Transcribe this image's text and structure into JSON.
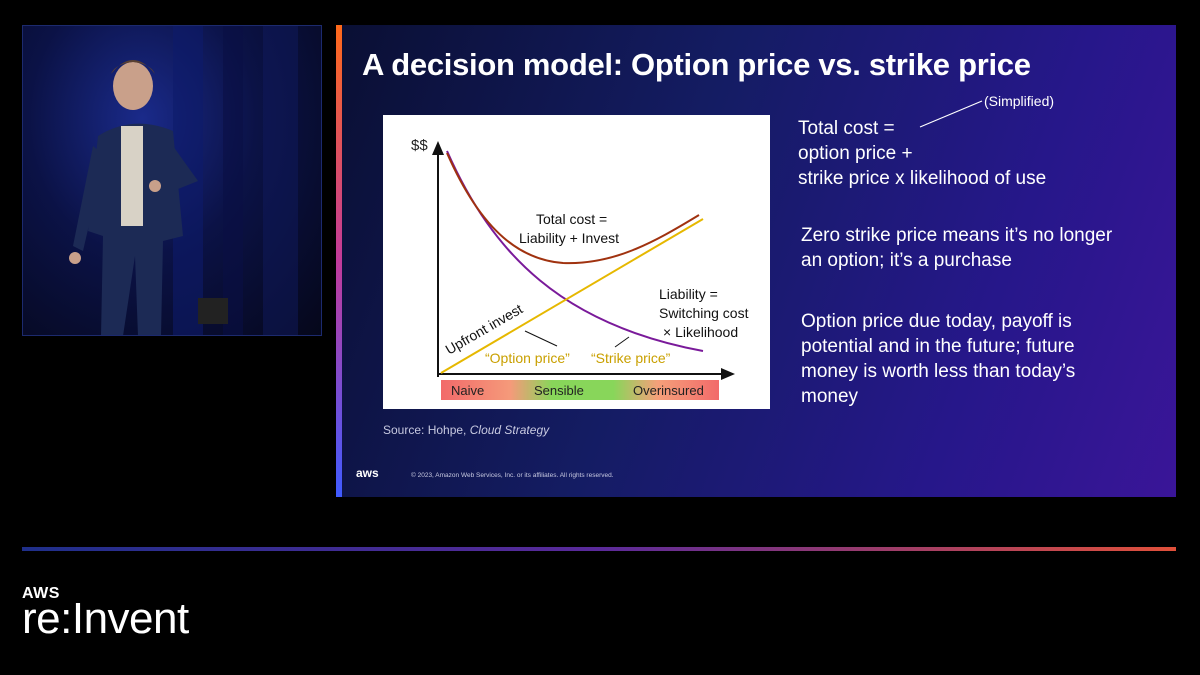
{
  "slide": {
    "title": "A decision model: Option price vs. strike price",
    "annotation": "(Simplified)",
    "total_cost_lines": [
      "Total cost =",
      "option price +",
      "strike price x likelihood of use"
    ],
    "point2_lines": [
      "Zero strike price means it’s no longer",
      "an option; it’s a purchase"
    ],
    "point3_lines": [
      "Option price due today, payoff is",
      "potential and in the future; future",
      "money is worth less than today’s",
      "money"
    ],
    "source_prefix": "Source: Hohpe,",
    "source_title": "Cloud Strategy",
    "footer_logo": "aws",
    "copyright": "© 2023, Amazon Web Services, Inc. or its affiliates. All rights reserved."
  },
  "chart": {
    "y_axis_label": "$$",
    "total_cost_label": [
      "Total cost =",
      "Liability + Invest"
    ],
    "upfront_label": "Upfront invest",
    "liability_label": [
      "Liability =",
      "Switching cost",
      "× Likelihood"
    ],
    "option_price_label": "“Option price”",
    "strike_price_label": "“Strike price”",
    "zones": [
      "Naive",
      "Sensible",
      "Overinsured"
    ],
    "colors": {
      "total": "#a0320f",
      "upfront": "#e6b800",
      "liability": "#7a1a9a",
      "naive": "#f26a6a",
      "sensible": "#88d65a",
      "over": "#f26a6a"
    }
  },
  "brand": {
    "aws": "AWS",
    "reinvent": "re:Invent"
  }
}
